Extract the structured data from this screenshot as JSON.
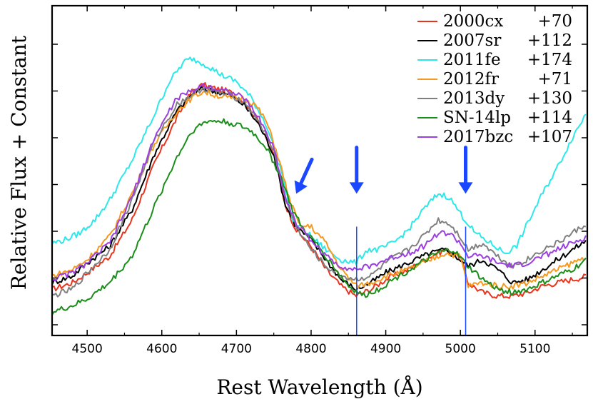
{
  "chart_data": {
    "type": "line",
    "title": "",
    "xlabel": "Rest Wavelength (Å)",
    "ylabel": "Relative Flux + Constant",
    "xlim": [
      4453,
      5170
    ],
    "ylim": [
      0,
      100
    ],
    "x_ticks": [
      4500,
      4600,
      4700,
      4800,
      4900,
      5000,
      5100
    ],
    "y_ticks_visible_labels": false,
    "legend_position": "top-right",
    "grid": false,
    "series": [
      {
        "name": "2000cx",
        "phase": "+70",
        "color": "#e8341c",
        "points": [
          [
            4453,
            14
          ],
          [
            4480,
            16
          ],
          [
            4500,
            19
          ],
          [
            4530,
            24
          ],
          [
            4560,
            35
          ],
          [
            4590,
            52
          ],
          [
            4620,
            66
          ],
          [
            4640,
            74
          ],
          [
            4655,
            76
          ],
          [
            4670,
            75
          ],
          [
            4690,
            74
          ],
          [
            4710,
            71
          ],
          [
            4730,
            65
          ],
          [
            4750,
            55
          ],
          [
            4765,
            40
          ],
          [
            4780,
            32
          ],
          [
            4800,
            27
          ],
          [
            4820,
            20
          ],
          [
            4840,
            15
          ],
          [
            4860,
            12
          ],
          [
            4880,
            14
          ],
          [
            4900,
            17
          ],
          [
            4930,
            20
          ],
          [
            4960,
            24
          ],
          [
            4980,
            26
          ],
          [
            5000,
            24
          ],
          [
            5010,
            16
          ],
          [
            5030,
            13
          ],
          [
            5050,
            12
          ],
          [
            5070,
            12
          ],
          [
            5090,
            13
          ],
          [
            5110,
            15
          ],
          [
            5130,
            16
          ],
          [
            5150,
            17
          ],
          [
            5170,
            18
          ]
        ]
      },
      {
        "name": "2007sr",
        "phase": "+112",
        "color": "#000000",
        "points": [
          [
            4453,
            16
          ],
          [
            4480,
            18
          ],
          [
            4500,
            22
          ],
          [
            4530,
            27
          ],
          [
            4560,
            38
          ],
          [
            4590,
            55
          ],
          [
            4620,
            68
          ],
          [
            4640,
            73
          ],
          [
            4655,
            75
          ],
          [
            4670,
            74
          ],
          [
            4690,
            73
          ],
          [
            4710,
            70
          ],
          [
            4730,
            64
          ],
          [
            4750,
            55
          ],
          [
            4765,
            40
          ],
          [
            4780,
            33
          ],
          [
            4800,
            29
          ],
          [
            4820,
            23
          ],
          [
            4840,
            17
          ],
          [
            4860,
            14
          ],
          [
            4880,
            16
          ],
          [
            4900,
            19
          ],
          [
            4930,
            22
          ],
          [
            4960,
            25
          ],
          [
            4980,
            26
          ],
          [
            5000,
            23
          ],
          [
            5010,
            21
          ],
          [
            5030,
            23
          ],
          [
            5050,
            20
          ],
          [
            5070,
            16
          ],
          [
            5090,
            17
          ],
          [
            5110,
            20
          ],
          [
            5130,
            23
          ],
          [
            5150,
            26
          ],
          [
            5170,
            29
          ]
        ]
      },
      {
        "name": "2011fe",
        "phase": "+174",
        "color": "#2de8ea",
        "points": [
          [
            4453,
            28
          ],
          [
            4470,
            29
          ],
          [
            4490,
            31
          ],
          [
            4510,
            35
          ],
          [
            4530,
            41
          ],
          [
            4560,
            53
          ],
          [
            4590,
            67
          ],
          [
            4610,
            77
          ],
          [
            4630,
            83
          ],
          [
            4640,
            84
          ],
          [
            4660,
            82
          ],
          [
            4680,
            79
          ],
          [
            4700,
            77
          ],
          [
            4720,
            72
          ],
          [
            4740,
            64
          ],
          [
            4760,
            50
          ],
          [
            4775,
            35
          ],
          [
            4800,
            30
          ],
          [
            4820,
            26
          ],
          [
            4840,
            23
          ],
          [
            4860,
            22
          ],
          [
            4875,
            26
          ],
          [
            4890,
            26
          ],
          [
            4910,
            28
          ],
          [
            4930,
            32
          ],
          [
            4950,
            38
          ],
          [
            4970,
            43
          ],
          [
            4985,
            42
          ],
          [
            5000,
            37
          ],
          [
            5020,
            31
          ],
          [
            5040,
            28
          ],
          [
            5060,
            25
          ],
          [
            5075,
            27
          ],
          [
            5090,
            34
          ],
          [
            5110,
            43
          ],
          [
            5130,
            51
          ],
          [
            5150,
            60
          ],
          [
            5170,
            68
          ]
        ]
      },
      {
        "name": "2012fr",
        "phase": "+71",
        "color": "#f59a1e",
        "points": [
          [
            4453,
            18
          ],
          [
            4480,
            20
          ],
          [
            4500,
            23
          ],
          [
            4530,
            30
          ],
          [
            4560,
            43
          ],
          [
            4590,
            58
          ],
          [
            4620,
            68
          ],
          [
            4640,
            72
          ],
          [
            4655,
            74
          ],
          [
            4670,
            73
          ],
          [
            4690,
            72
          ],
          [
            4710,
            72
          ],
          [
            4725,
            70
          ],
          [
            4740,
            65
          ],
          [
            4755,
            55
          ],
          [
            4770,
            42
          ],
          [
            4785,
            33
          ],
          [
            4800,
            33
          ],
          [
            4820,
            28
          ],
          [
            4840,
            20
          ],
          [
            4860,
            15
          ],
          [
            4880,
            16
          ],
          [
            4900,
            18
          ],
          [
            4930,
            20
          ],
          [
            4960,
            23
          ],
          [
            4980,
            25
          ],
          [
            5000,
            24
          ],
          [
            5010,
            15
          ],
          [
            5030,
            16
          ],
          [
            5050,
            15
          ],
          [
            5070,
            15
          ],
          [
            5090,
            16
          ],
          [
            5110,
            18
          ],
          [
            5130,
            20
          ],
          [
            5150,
            22
          ],
          [
            5170,
            24
          ]
        ]
      },
      {
        "name": "2013dy",
        "phase": "+130",
        "color": "#808080",
        "points": [
          [
            4453,
            12
          ],
          [
            4480,
            14
          ],
          [
            4500,
            19
          ],
          [
            4530,
            26
          ],
          [
            4560,
            41
          ],
          [
            4590,
            59
          ],
          [
            4620,
            70
          ],
          [
            4640,
            73
          ],
          [
            4655,
            75
          ],
          [
            4670,
            74
          ],
          [
            4690,
            73
          ],
          [
            4710,
            71
          ],
          [
            4730,
            65
          ],
          [
            4750,
            56
          ],
          [
            4765,
            42
          ],
          [
            4780,
            33
          ],
          [
            4800,
            26
          ],
          [
            4820,
            21
          ],
          [
            4840,
            18
          ],
          [
            4860,
            17
          ],
          [
            4880,
            18
          ],
          [
            4900,
            22
          ],
          [
            4930,
            26
          ],
          [
            4950,
            30
          ],
          [
            4970,
            35
          ],
          [
            4985,
            34
          ],
          [
            5000,
            30
          ],
          [
            5010,
            26
          ],
          [
            5030,
            28
          ],
          [
            5050,
            24
          ],
          [
            5070,
            21
          ],
          [
            5090,
            23
          ],
          [
            5110,
            26
          ],
          [
            5130,
            28
          ],
          [
            5150,
            31
          ],
          [
            5170,
            34
          ]
        ]
      },
      {
        "name": "SN-14lp",
        "phase": "+114",
        "color": "#1a8e1a",
        "points": [
          [
            4453,
            7
          ],
          [
            4480,
            9
          ],
          [
            4500,
            11
          ],
          [
            4530,
            16
          ],
          [
            4560,
            24
          ],
          [
            4590,
            39
          ],
          [
            4620,
            54
          ],
          [
            4640,
            62
          ],
          [
            4660,
            65
          ],
          [
            4680,
            65
          ],
          [
            4700,
            64
          ],
          [
            4720,
            62
          ],
          [
            4740,
            57
          ],
          [
            4760,
            48
          ],
          [
            4775,
            38
          ],
          [
            4790,
            32
          ],
          [
            4810,
            27
          ],
          [
            4830,
            21
          ],
          [
            4850,
            15
          ],
          [
            4870,
            12
          ],
          [
            4890,
            14
          ],
          [
            4910,
            17
          ],
          [
            4940,
            21
          ],
          [
            4970,
            25
          ],
          [
            4990,
            26
          ],
          [
            5010,
            21
          ],
          [
            5030,
            17
          ],
          [
            5050,
            14
          ],
          [
            5070,
            13
          ],
          [
            5090,
            14
          ],
          [
            5110,
            16
          ],
          [
            5130,
            18
          ],
          [
            5150,
            20
          ],
          [
            5170,
            23
          ]
        ]
      },
      {
        "name": "2017bzc",
        "phase": "+107",
        "color": "#9b3fe0",
        "points": [
          [
            4453,
            17
          ],
          [
            4480,
            19
          ],
          [
            4500,
            22
          ],
          [
            4530,
            28
          ],
          [
            4560,
            42
          ],
          [
            4590,
            60
          ],
          [
            4620,
            72
          ],
          [
            4640,
            74
          ],
          [
            4655,
            76
          ],
          [
            4670,
            75
          ],
          [
            4690,
            74
          ],
          [
            4710,
            72
          ],
          [
            4730,
            66
          ],
          [
            4750,
            57
          ],
          [
            4765,
            42
          ],
          [
            4780,
            34
          ],
          [
            4800,
            29
          ],
          [
            4820,
            24
          ],
          [
            4840,
            21
          ],
          [
            4860,
            20
          ],
          [
            4880,
            21
          ],
          [
            4900,
            23
          ],
          [
            4930,
            25
          ],
          [
            4950,
            27
          ],
          [
            4970,
            31
          ],
          [
            4985,
            31
          ],
          [
            5000,
            28
          ],
          [
            5010,
            24
          ],
          [
            5030,
            24
          ],
          [
            5050,
            22
          ],
          [
            5070,
            21
          ],
          [
            5090,
            22
          ],
          [
            5110,
            24
          ],
          [
            5130,
            26
          ],
          [
            5150,
            28
          ],
          [
            5170,
            30
          ]
        ]
      }
    ],
    "annotations": [
      {
        "type": "arrow",
        "label": "arrow-4780",
        "x": 4780,
        "from_y": 55,
        "to_y": 43,
        "slanted": true
      },
      {
        "type": "arrow",
        "label": "arrow-4861",
        "x": 4861,
        "from_y": 57,
        "to_y": 43
      },
      {
        "type": "arrow",
        "label": "arrow-5007",
        "x": 5007,
        "from_y": 57,
        "to_y": 43
      },
      {
        "type": "vline",
        "label": "H-beta line",
        "x": 4861,
        "y_range": [
          0,
          33
        ]
      },
      {
        "type": "vline",
        "label": "[O III] line",
        "x": 5007,
        "y_range": [
          0,
          33
        ]
      }
    ],
    "annotation_color": "#1a47ff"
  }
}
